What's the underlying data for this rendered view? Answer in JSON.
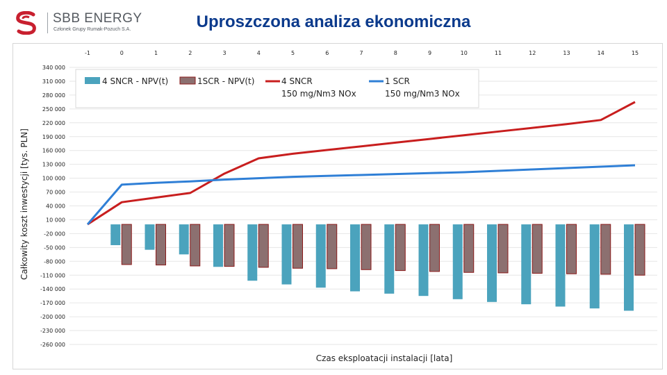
{
  "slide": {
    "title": "Uproszczona analiza ekonomiczna",
    "logo_name": "SBB ENERGY",
    "logo_sub": "Członek Grupy Rumak-Pozuch S.A."
  },
  "colors": {
    "title": "#0b3a8c",
    "npv_sncr_fill": "#4ba3bd",
    "npv_scr_fill": "#8c7070",
    "npv_scr_border": "#8b1a1a",
    "line_sncr": "#c81e1e",
    "line_scr": "#2f7fd6",
    "logo_red": "#c8202f"
  },
  "chart_data": {
    "type": "bar+line",
    "categories": [
      "-1",
      "0",
      "1",
      "2",
      "3",
      "4",
      "5",
      "6",
      "7",
      "8",
      "9",
      "10",
      "11",
      "12",
      "13",
      "14",
      "15"
    ],
    "ylabel": "Całkowity koszt inwestycji   [tys. PLN]",
    "xlabel": "Czas eksploatacji  instalacji  [lata]",
    "ylim": [
      -260000,
      340000
    ],
    "yticks": [
      340000,
      310000,
      280000,
      250000,
      220000,
      190000,
      160000,
      130000,
      100000,
      70000,
      40000,
      10000,
      -20000,
      -50000,
      -80000,
      -110000,
      -140000,
      -170000,
      -200000,
      -230000,
      -260000
    ],
    "ytick_labels": [
      "340 000",
      "310 000",
      "280 000",
      "250 000",
      "220 000",
      "190 000",
      "160 000",
      "130 000",
      "100 000",
      "70 000",
      "40 000",
      "10 000",
      "-20 000",
      "-50 000",
      "-80 000",
      "-110 000",
      "-140 000",
      "-170 000",
      "-200 000",
      "-230 000",
      "-260 000"
    ],
    "legend": [
      {
        "label": "4 SNCR - NPV(t)",
        "kind": "bar"
      },
      {
        "label": "1SCR - NPV(t)",
        "kind": "bar"
      },
      {
        "label": "4 SNCR\n150 mg/Nm3 NOx",
        "kind": "line"
      },
      {
        "label": "1 SCR\n150 mg/Nm3 NOx",
        "kind": "line"
      }
    ],
    "series": [
      {
        "name": "4 SNCR - NPV(t)",
        "kind": "bar",
        "values": [
          null,
          -45000,
          -55000,
          -65000,
          -92000,
          -122000,
          -130000,
          -137000,
          -145000,
          -150000,
          -155000,
          -162000,
          -168000,
          -173000,
          -178000,
          -182000,
          -187000
        ]
      },
      {
        "name": "1SCR - NPV(t)",
        "kind": "bar",
        "values": [
          null,
          -87000,
          -88000,
          -90000,
          -91000,
          -93000,
          -95000,
          -96000,
          -98000,
          -100000,
          -102000,
          -104000,
          -105000,
          -106000,
          -107000,
          -108000,
          -110000
        ]
      },
      {
        "name": "4 SNCR 150 mg/Nm3 NOx",
        "kind": "line",
        "values": [
          0,
          48000,
          58000,
          68000,
          110000,
          143000,
          153000,
          161000,
          169000,
          177000,
          185000,
          193000,
          201000,
          209000,
          217000,
          226000,
          265000
        ]
      },
      {
        "name": "1 SCR 150 mg/Nm3 NOx",
        "kind": "line",
        "values": [
          0,
          86000,
          90000,
          93000,
          97000,
          100000,
          103000,
          105000,
          107000,
          109000,
          111000,
          113000,
          116000,
          119000,
          122000,
          125000,
          128000
        ]
      }
    ]
  }
}
